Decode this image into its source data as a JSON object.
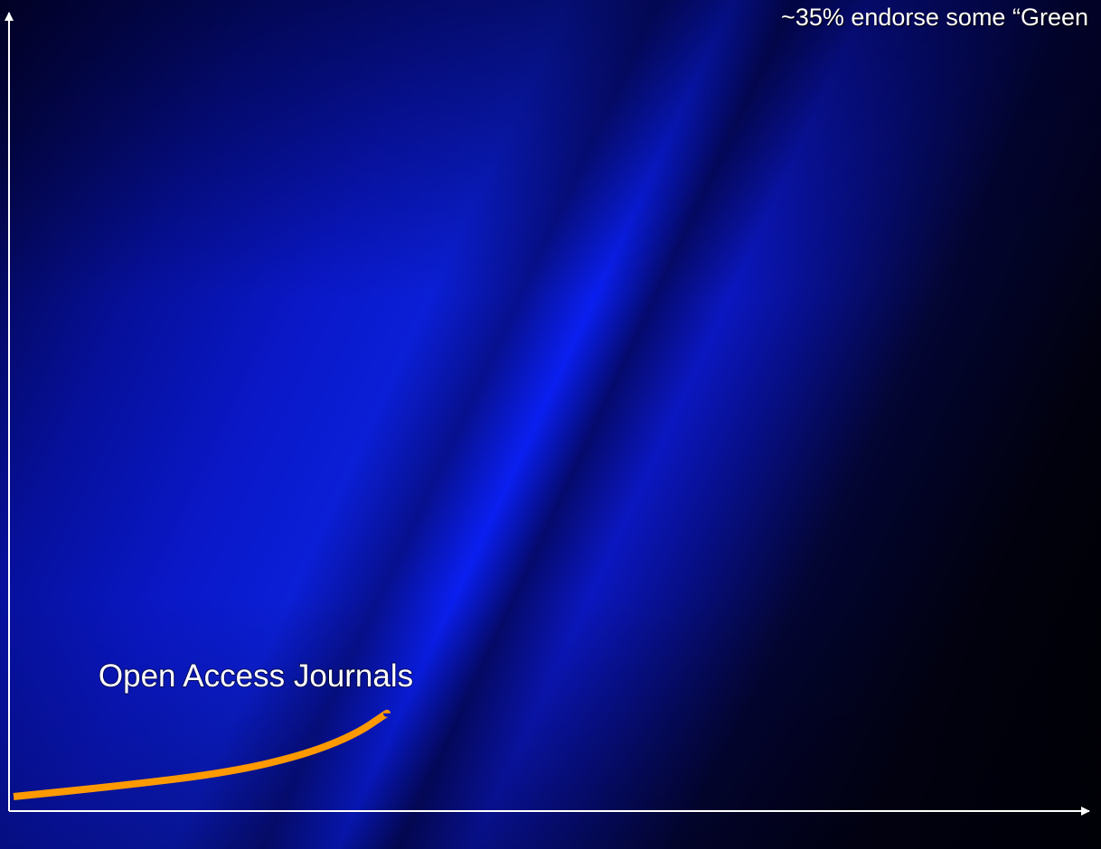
{
  "top_annotation": "~35% endorse some “Green",
  "chart_data": {
    "type": "line",
    "title": "",
    "xlabel": "",
    "ylabel": "",
    "xlim": [
      0,
      100
    ],
    "ylim": [
      0,
      100
    ],
    "grid": false,
    "series": [
      {
        "name": "Open Access Journals",
        "color": "#ff9900",
        "x": [
          0,
          10,
          20,
          27,
          32,
          35
        ],
        "y": [
          0.0,
          1.4,
          3.1,
          5.3,
          8.0,
          10.8
        ]
      }
    ]
  },
  "colors": {
    "axis": "#ffffff",
    "text": "#ffffff"
  }
}
